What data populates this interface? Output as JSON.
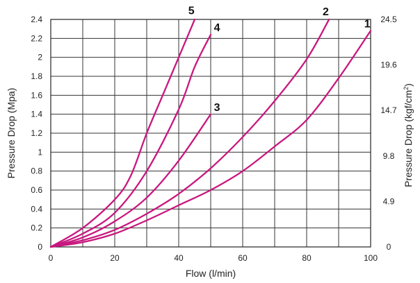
{
  "chart_data": {
    "type": "line",
    "xlabel": "Flow  (l/min)",
    "ylabel": "Pressure Drop  (Mpa)",
    "y2label_main": "Pressure Drop  (kgf/cm",
    "y2label_sup": "2",
    "y2label_end": ")",
    "xlim": [
      0,
      100
    ],
    "ylim": [
      0,
      2.4
    ],
    "x_ticks": [
      0,
      10,
      20,
      30,
      40,
      50,
      60,
      70,
      80,
      90,
      100
    ],
    "x_tick_labels": [
      "0",
      "20",
      "40",
      "60",
      "80",
      "100"
    ],
    "x_tick_label_values": [
      0,
      20,
      40,
      60,
      80,
      100
    ],
    "y_ticks": [
      0,
      0.2,
      0.4,
      0.6,
      0.8,
      1,
      1.2,
      1.4,
      1.6,
      1.8,
      2,
      2.2,
      2.4
    ],
    "y_tick_labels": [
      "0",
      "0.2",
      "0.4",
      "0.6",
      "0.8",
      "1",
      "1.2",
      "1.4",
      "1.6",
      "1.8",
      "2",
      "2.2",
      "2.4"
    ],
    "y2_tick_labels": [
      "0",
      "4.9",
      "9.8",
      "14.7",
      "19.6",
      "24.5"
    ],
    "y2_tick_values": [
      0,
      0.48,
      0.96,
      1.44,
      1.92,
      2.4
    ],
    "grid": true,
    "line_color": "#c8177e",
    "series": [
      {
        "name": "1",
        "points": [
          [
            0,
            0
          ],
          [
            10,
            0.05
          ],
          [
            20,
            0.14
          ],
          [
            30,
            0.28
          ],
          [
            40,
            0.44
          ],
          [
            50,
            0.6
          ],
          [
            60,
            0.8
          ],
          [
            70,
            1.06
          ],
          [
            80,
            1.34
          ],
          [
            90,
            1.78
          ],
          [
            100,
            2.28
          ]
        ],
        "label_at": [
          98,
          2.3
        ]
      },
      {
        "name": "2",
        "points": [
          [
            0,
            0
          ],
          [
            10,
            0.07
          ],
          [
            20,
            0.18
          ],
          [
            30,
            0.35
          ],
          [
            40,
            0.56
          ],
          [
            50,
            0.83
          ],
          [
            60,
            1.16
          ],
          [
            70,
            1.54
          ],
          [
            80,
            1.98
          ],
          [
            87,
            2.4
          ]
        ],
        "label_at": [
          85,
          2.43
        ]
      },
      {
        "name": "3",
        "points": [
          [
            0,
            0
          ],
          [
            10,
            0.1
          ],
          [
            20,
            0.27
          ],
          [
            30,
            0.52
          ],
          [
            40,
            0.91
          ],
          [
            50,
            1.4
          ]
        ],
        "label_at": [
          51,
          1.42
        ]
      },
      {
        "name": "4",
        "points": [
          [
            0,
            0
          ],
          [
            10,
            0.14
          ],
          [
            20,
            0.36
          ],
          [
            30,
            0.8
          ],
          [
            40,
            1.45
          ],
          [
            45,
            1.9
          ],
          [
            50,
            2.24
          ]
        ],
        "label_at": [
          51,
          2.26
        ]
      },
      {
        "name": "5",
        "points": [
          [
            0,
            0
          ],
          [
            10,
            0.2
          ],
          [
            20,
            0.5
          ],
          [
            25,
            0.75
          ],
          [
            30,
            1.2
          ],
          [
            35,
            1.6
          ],
          [
            40,
            2.0
          ],
          [
            45,
            2.4
          ]
        ],
        "label_at": [
          43,
          2.44
        ]
      }
    ]
  }
}
